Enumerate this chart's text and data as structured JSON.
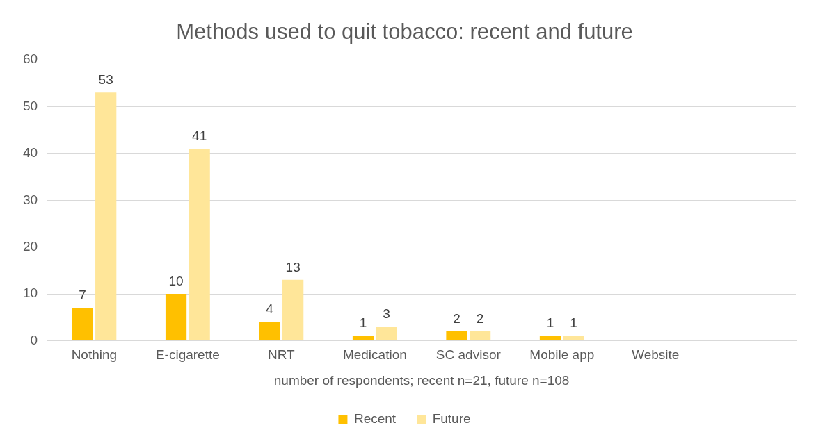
{
  "chart_data": {
    "type": "bar",
    "title": "Methods used to quit tobacco: recent and future",
    "xlabel": "number of respondents; recent n=21, future n=108",
    "categories": [
      "Nothing",
      "E-cigarette",
      "NRT",
      "Medication",
      "SC advisor",
      "Mobile app",
      "Website",
      null
    ],
    "series": [
      {
        "name": "Recent",
        "color": "#ffc000",
        "values": [
          7,
          10,
          4,
          1,
          2,
          1,
          0,
          null
        ],
        "value_labels": [
          "7",
          "10",
          "4",
          "1",
          "2",
          "1",
          null,
          null
        ]
      },
      {
        "name": "Future",
        "color": "#ffe699",
        "values": [
          53,
          41,
          13,
          3,
          2,
          1,
          0,
          null
        ],
        "value_labels": [
          "53",
          "41",
          "13",
          "3",
          "2",
          "1",
          null,
          null
        ]
      }
    ],
    "ylim": [
      0,
      60
    ],
    "yticks": [
      0,
      10,
      20,
      30,
      40,
      50,
      60
    ],
    "grid": "y",
    "legend": "bottom"
  }
}
